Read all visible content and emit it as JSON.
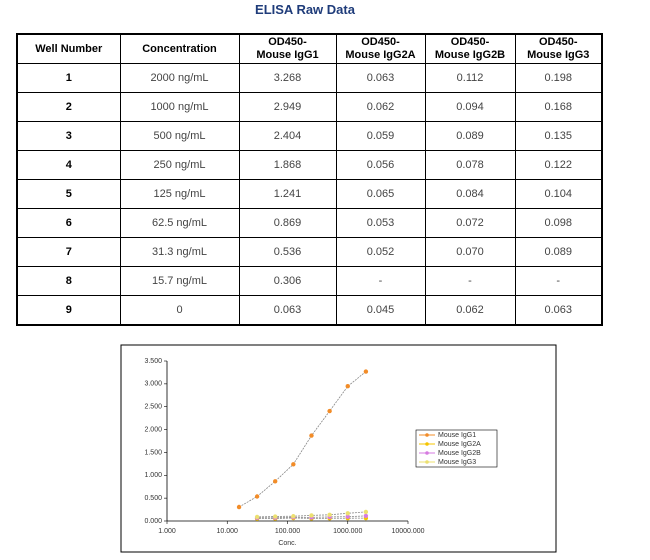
{
  "title": "ELISA Raw Data",
  "table": {
    "header": [
      "Well Number",
      "Concentration",
      "OD450-\nMouse IgG1",
      "OD450-\nMouse IgG2A",
      "OD450-\nMouse IgG2B",
      "OD450-\nMouse IgG3"
    ],
    "rows": [
      [
        "1",
        "2000 ng/mL",
        "3.268",
        "0.063",
        "0.112",
        "0.198"
      ],
      [
        "2",
        "1000 ng/mL",
        "2.949",
        "0.062",
        "0.094",
        "0.168"
      ],
      [
        "3",
        "500 ng/mL",
        "2.404",
        "0.059",
        "0.089",
        "0.135"
      ],
      [
        "4",
        "250 ng/mL",
        "1.868",
        "0.056",
        "0.078",
        "0.122"
      ],
      [
        "5",
        "125 ng/mL",
        "1.241",
        "0.065",
        "0.084",
        "0.104"
      ],
      [
        "6",
        "62.5 ng/mL",
        "0.869",
        "0.053",
        "0.072",
        "0.098"
      ],
      [
        "7",
        "31.3 ng/mL",
        "0.536",
        "0.052",
        "0.070",
        "0.089"
      ],
      [
        "8",
        "15.7 ng/mL",
        "0.306",
        "-",
        "-",
        "-"
      ],
      [
        "9",
        "0",
        "0.063",
        "0.045",
        "0.062",
        "0.063"
      ]
    ]
  },
  "chart_data": {
    "type": "line",
    "x_label": "Conc.",
    "x": [
      2000,
      1000,
      500,
      250,
      125,
      62.5,
      31.3,
      15.7
    ],
    "log_x": true,
    "xlim": [
      1,
      10000
    ],
    "xticks": [
      {
        "value": 1,
        "label": "1.000"
      },
      {
        "value": 10,
        "label": "10.000"
      },
      {
        "value": 100,
        "label": "100.000"
      },
      {
        "value": 1000,
        "label": "1000.000"
      },
      {
        "value": 10000,
        "label": "10000.000"
      }
    ],
    "ylim": [
      0,
      3.5
    ],
    "yticks": [
      {
        "value": 0,
        "label": "0.000"
      },
      {
        "value": 0.5,
        "label": "0.500"
      },
      {
        "value": 1,
        "label": "1.000"
      },
      {
        "value": 1.5,
        "label": "1.500"
      },
      {
        "value": 2,
        "label": "2.000"
      },
      {
        "value": 2.5,
        "label": "2.500"
      },
      {
        "value": 3,
        "label": "3.000"
      },
      {
        "value": 3.5,
        "label": "3.500"
      }
    ],
    "legend": "right",
    "series": [
      {
        "name": "Mouse IgG1",
        "color": "#f28c28",
        "values": [
          3.268,
          2.949,
          2.404,
          1.868,
          1.241,
          0.869,
          0.536,
          0.306
        ]
      },
      {
        "name": "Mouse IgG2A",
        "color": "#f5c400",
        "values": [
          0.063,
          0.062,
          0.059,
          0.056,
          0.065,
          0.053,
          0.052,
          null
        ]
      },
      {
        "name": "Mouse IgG2B",
        "color": "#d67be0",
        "values": [
          0.112,
          0.094,
          0.089,
          0.078,
          0.084,
          0.072,
          0.07,
          null
        ]
      },
      {
        "name": "Mouse IgG3",
        "color": "#ece070",
        "values": [
          0.198,
          0.168,
          0.135,
          0.122,
          0.104,
          0.098,
          0.089,
          null
        ]
      }
    ]
  }
}
